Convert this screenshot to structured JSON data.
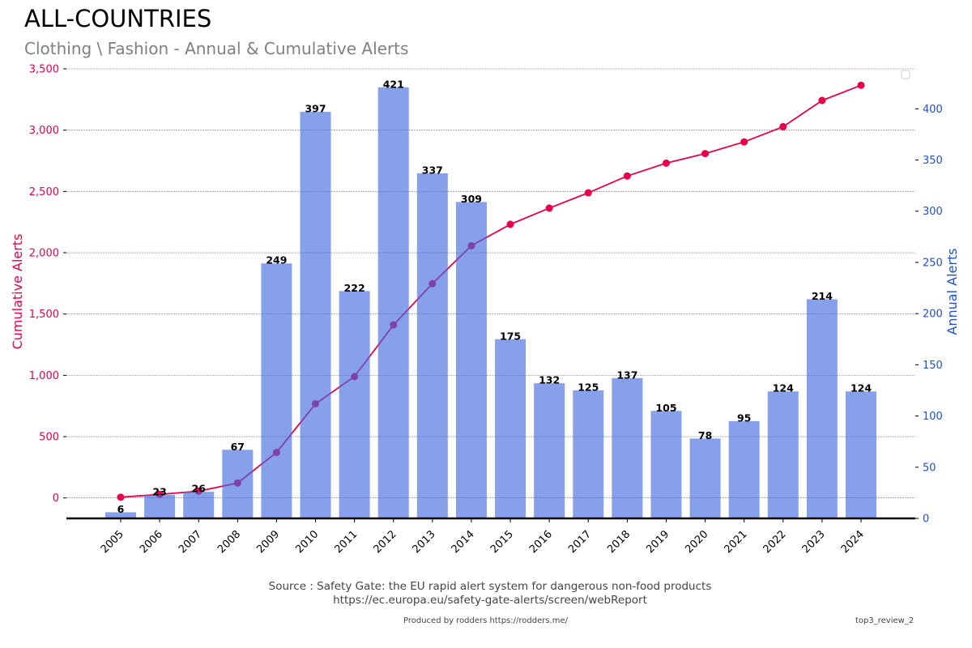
{
  "header": {
    "title": "ALL-COUNTRIES",
    "subtitle": "Clothing \\ Fashion - Annual & Cumulative Alerts"
  },
  "footer": {
    "source": "Source : Safety Gate: the EU rapid alert system for dangerous non-food products",
    "url": "https://ec.europa.eu/safety-gate-alerts/screen/webReport",
    "produced_by": "Produced by rodders https://rodders.me/",
    "tag": "top3_review_2"
  },
  "chart_data": {
    "type": "bar+line",
    "categories": [
      "2005",
      "2006",
      "2007",
      "2008",
      "2009",
      "2010",
      "2011",
      "2012",
      "2013",
      "2014",
      "2015",
      "2016",
      "2017",
      "2018",
      "2019",
      "2020",
      "2021",
      "2022",
      "2023",
      "2024"
    ],
    "series": [
      {
        "name": "Annual Alerts",
        "type": "bar",
        "axis": "right",
        "color": "#4169e1",
        "values": [
          6,
          23,
          26,
          67,
          249,
          397,
          222,
          421,
          337,
          309,
          175,
          132,
          125,
          137,
          105,
          78,
          95,
          124,
          214,
          124
        ]
      },
      {
        "name": "Cumulative Alerts",
        "type": "line",
        "axis": "left",
        "color": "#e8004a",
        "values": [
          6,
          29,
          55,
          122,
          371,
          768,
          990,
          1411,
          1748,
          2057,
          2232,
          2364,
          2489,
          2626,
          2731,
          2809,
          2904,
          3028,
          3242,
          3366
        ]
      }
    ],
    "ylabel_left": "Cumulative Alerts",
    "ylabel_right": "Annual Alerts",
    "yticks_left": [
      "0",
      "500",
      "1,000",
      "1,500",
      "2,000",
      "2,500",
      "3,000",
      "3,500"
    ],
    "yticks_right": [
      "0",
      "50",
      "100",
      "150",
      "200",
      "250",
      "300",
      "350",
      "400"
    ],
    "ylim_left": [
      -167,
      3500
    ],
    "ylim_right": [
      0,
      439
    ],
    "grid": true,
    "legend": "top-right (empty)",
    "left_color": "#e8004a",
    "right_color": "#1f4fcc"
  }
}
